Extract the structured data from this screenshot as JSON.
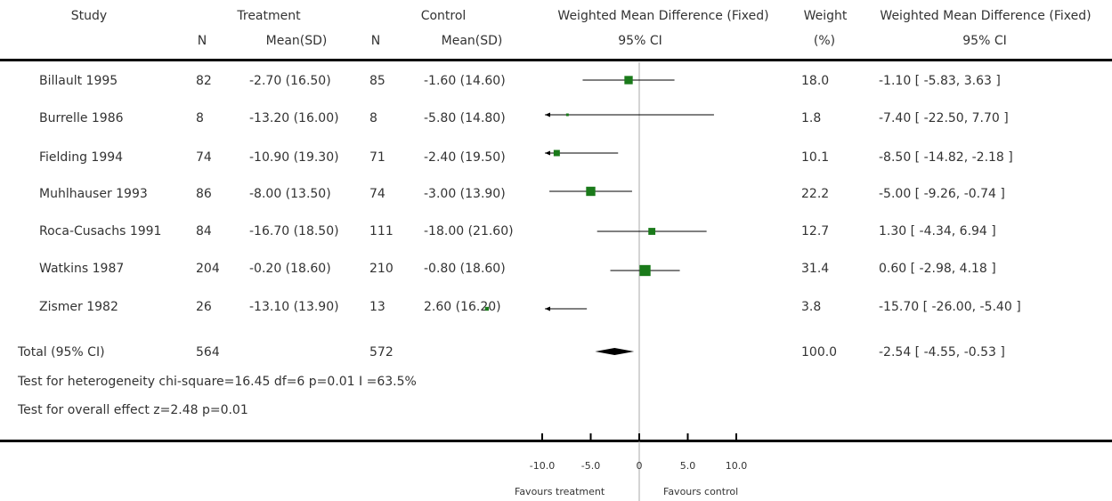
{
  "headers": {
    "study": "Study",
    "treatment": "Treatment",
    "control": "Control",
    "wmd_plot": "Weighted Mean Difference (Fixed)",
    "weight": "Weight",
    "wmd_text": "Weighted Mean Difference (Fixed)",
    "n_t": "N",
    "mean_t": "Mean(SD)",
    "n_c": "N",
    "mean_c": "Mean(SD)",
    "ci_plot": "95% CI",
    "weight_unit": "(%)",
    "ci_text": "95% CI"
  },
  "rows": [
    {
      "study": "Billault 1995",
      "n_t": "82",
      "mean_t": "-2.70 (16.50)",
      "n_c": "85",
      "mean_c": "-1.60 (14.60)",
      "weight": "18.0",
      "ci": "-1.10 [ -5.83, 3.63 ]"
    },
    {
      "study": "Burrelle 1986",
      "n_t": "8",
      "mean_t": "-13.20 (16.00)",
      "n_c": "8",
      "mean_c": "-5.80 (14.80)",
      "weight": "1.8",
      "ci": "-7.40 [ -22.50, 7.70 ]"
    },
    {
      "study": "Fielding 1994",
      "n_t": "74",
      "mean_t": "-10.90 (19.30)",
      "n_c": "71",
      "mean_c": "-2.40 (19.50)",
      "weight": "10.1",
      "ci": "-8.50 [ -14.82, -2.18 ]"
    },
    {
      "study": "Muhlhauser 1993",
      "n_t": "86",
      "mean_t": "-8.00 (13.50)",
      "n_c": "74",
      "mean_c": "-3.00 (13.90)",
      "weight": "22.2",
      "ci": "-5.00 [ -9.26, -0.74 ]"
    },
    {
      "study": "Roca-Cusachs 1991",
      "n_t": "84",
      "mean_t": "-16.70 (18.50)",
      "n_c": "111",
      "mean_c": "-18.00 (21.60)",
      "weight": "12.7",
      "ci": "1.30 [ -4.34, 6.94 ]"
    },
    {
      "study": "Watkins 1987",
      "n_t": "204",
      "mean_t": "-0.20 (18.60)",
      "n_c": "210",
      "mean_c": "-0.80 (18.60)",
      "weight": "31.4",
      "ci": "0.60 [ -2.98, 4.18 ]"
    },
    {
      "study": "Zismer 1982",
      "n_t": "26",
      "mean_t": "-13.10 (13.90)",
      "n_c": "13",
      "mean_c": "2.60 (16.20)",
      "weight": "3.8",
      "ci": "-15.70 [ -26.00, -5.40 ]"
    }
  ],
  "total": {
    "label": "Total (95% CI)",
    "n_t": "564",
    "n_c": "572",
    "weight": "100.0",
    "ci": "-2.54 [ -4.55, -0.53 ]"
  },
  "heterogeneity": "Test for heterogeneity chi-square=16.45 df=6 p=0.01 I =63.5%",
  "overall_effect": "Test for overall effect z=2.48   p=0.01",
  "footer": {
    "favours_left": "Favours treatment",
    "favours_right": "Favours control"
  },
  "colors": {
    "marker": "#1a7a1a",
    "line": "#000000",
    "zero_line": "#aaaaaa"
  },
  "chart_data": {
    "type": "forest",
    "x_ticks": [
      "-10.0",
      "-5.0",
      "0",
      "5.0",
      "10.0"
    ],
    "x_tick_values": [
      -10,
      -5,
      0,
      5,
      10
    ],
    "xlim": [
      -10,
      10
    ],
    "studies": [
      {
        "name": "Billault 1995",
        "estimate": -1.1,
        "lower": -5.83,
        "upper": 3.63,
        "weight": 18.0
      },
      {
        "name": "Burrelle 1986",
        "estimate": -7.4,
        "lower": -22.5,
        "upper": 7.7,
        "weight": 1.8
      },
      {
        "name": "Fielding 1994",
        "estimate": -8.5,
        "lower": -14.82,
        "upper": -2.18,
        "weight": 10.1
      },
      {
        "name": "Muhlhauser 1993",
        "estimate": -5.0,
        "lower": -9.26,
        "upper": -0.74,
        "weight": 22.2
      },
      {
        "name": "Roca-Cusachs 1991",
        "estimate": 1.3,
        "lower": -4.34,
        "upper": 6.94,
        "weight": 12.7
      },
      {
        "name": "Watkins 1987",
        "estimate": 0.6,
        "lower": -2.98,
        "upper": 4.18,
        "weight": 31.4
      },
      {
        "name": "Zismer 1982",
        "estimate": -15.7,
        "lower": -26.0,
        "upper": -5.4,
        "weight": 3.8
      }
    ],
    "pooled": {
      "estimate": -2.54,
      "lower": -4.55,
      "upper": -0.53
    }
  }
}
